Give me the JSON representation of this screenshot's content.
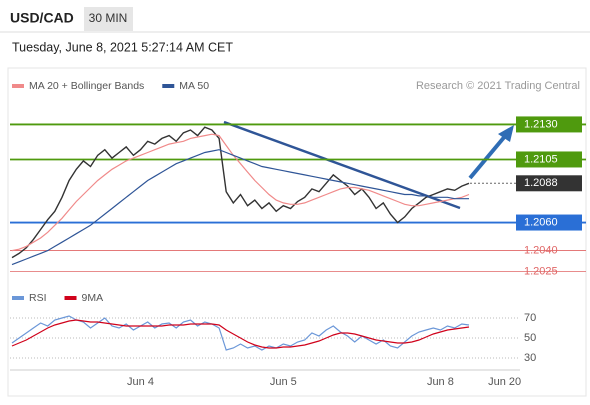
{
  "header": {
    "symbol": "USD/CAD",
    "timeframe": "30 MIN",
    "datetime": "Tuesday, June 8, 2021 5:27:14 AM CET",
    "source": "Research © 2021 Trading Central"
  },
  "chart_data": [
    {
      "type": "line",
      "ylim": [
        1.2019,
        1.2151
      ],
      "series": [
        {
          "color": "#333333",
          "values": [
            1.2035,
            1.2038,
            1.2042,
            1.2048,
            1.2055,
            1.2062,
            1.2068,
            1.2078,
            1.209,
            1.2098,
            1.2104,
            1.21,
            1.2108,
            1.2112,
            1.2106,
            1.211,
            1.2114,
            1.2108,
            1.2112,
            1.2118,
            1.2116,
            1.212,
            1.2122,
            1.2118,
            1.2124,
            1.2126,
            1.2122,
            1.2128,
            1.2126,
            1.212,
            1.2082,
            1.2074,
            1.208,
            1.2072,
            1.2076,
            1.207,
            1.2074,
            1.2068,
            1.2072,
            1.207,
            1.2075,
            1.2078,
            1.2084,
            1.2082,
            1.2088,
            1.2094,
            1.209,
            1.2086,
            1.208,
            1.2084,
            1.2078,
            1.207,
            1.2074,
            1.2066,
            1.206,
            1.2064,
            1.207,
            1.2074,
            1.2078,
            1.208,
            1.2082,
            1.2084,
            1.2083,
            1.2086,
            1.2088,
            null,
            null,
            null,
            null,
            null
          ]
        },
        {
          "name": "MA 20 + Bollinger Bands",
          "color": "#f08a8a",
          "values": [
            1.204,
            1.2041,
            1.2043,
            1.2046,
            1.2049,
            1.2053,
            1.2058,
            1.2063,
            1.2069,
            1.2075,
            1.208,
            1.2085,
            1.209,
            1.2094,
            1.2098,
            1.2101,
            1.2104,
            1.2106,
            1.2108,
            1.211,
            1.2112,
            1.2114,
            1.2116,
            1.2117,
            1.2118,
            1.212,
            1.2121,
            1.2122,
            1.2123,
            1.2122,
            1.2115,
            1.2108,
            1.2102,
            1.2096,
            1.209,
            1.2085,
            1.208,
            1.2076,
            1.2074,
            1.2073,
            1.2073,
            1.2074,
            1.2076,
            1.2078,
            1.208,
            1.2082,
            1.2084,
            1.2085,
            1.2085,
            1.2084,
            1.2083,
            1.2081,
            1.2079,
            1.2077,
            1.2075,
            1.2073,
            1.2072,
            1.2072,
            1.2073,
            1.2074,
            1.2075,
            1.2076,
            1.2077,
            1.2078,
            1.208,
            null,
            null,
            null,
            null,
            null
          ]
        },
        {
          "name": "MA 50",
          "color": "#2f5597",
          "values": [
            1.203,
            1.2032,
            1.2034,
            1.2036,
            1.2038,
            1.204,
            1.2043,
            1.2046,
            1.2049,
            1.2052,
            1.2055,
            1.2058,
            1.2062,
            1.2066,
            1.207,
            1.2074,
            1.2078,
            1.2082,
            1.2086,
            1.209,
            1.2093,
            1.2096,
            1.2099,
            1.2102,
            1.2104,
            1.2106,
            1.2108,
            1.211,
            1.2111,
            1.2112,
            1.211,
            1.2108,
            1.2106,
            1.2104,
            1.2102,
            1.21,
            1.2099,
            1.2098,
            1.2097,
            1.2096,
            1.2095,
            1.2094,
            1.2093,
            1.2092,
            1.2091,
            1.209,
            1.2089,
            1.2088,
            1.2087,
            1.2086,
            1.2085,
            1.2084,
            1.2083,
            1.2082,
            1.2081,
            1.208,
            1.208,
            1.2079,
            1.2079,
            1.2078,
            1.2078,
            1.2078,
            1.2077,
            1.2077,
            1.2077,
            null,
            null,
            null,
            null,
            null
          ]
        }
      ],
      "levels": [
        {
          "value": 1.213,
          "label": "1.2130",
          "color": "#4f9a0e"
        },
        {
          "value": 1.2105,
          "label": "1.2105",
          "color": "#4f9a0e"
        },
        {
          "value": 1.206,
          "label": "1.2060",
          "color": "#2a6fd6"
        },
        {
          "value": 1.204,
          "label": "1.2040",
          "color": "#e06666"
        },
        {
          "value": 1.2025,
          "label": "1.2025",
          "color": "#e06666"
        }
      ],
      "last": {
        "value": 1.2088,
        "label": "1.2088",
        "color": "#333333"
      }
    },
    {
      "type": "line",
      "ylim": [
        16,
        82
      ],
      "yticks": [
        30,
        50,
        70
      ],
      "categories": [
        null,
        null,
        null,
        null,
        null,
        null,
        null,
        null,
        null,
        null,
        null,
        null,
        null,
        null,
        null,
        null,
        null,
        null,
        "Jun 4",
        null,
        null,
        null,
        null,
        null,
        null,
        null,
        null,
        null,
        null,
        null,
        null,
        null,
        null,
        null,
        null,
        null,
        null,
        null,
        "Jun 5",
        null,
        null,
        null,
        null,
        null,
        null,
        null,
        null,
        null,
        null,
        null,
        null,
        null,
        null,
        null,
        null,
        null,
        null,
        null,
        null,
        null,
        "Jun 8",
        null,
        null,
        null,
        null,
        null,
        null,
        null,
        null,
        "Jun 20"
      ],
      "series": [
        {
          "name": "RSI",
          "color": "#6b97d8",
          "values": [
            45,
            50,
            55,
            60,
            65,
            62,
            68,
            70,
            72,
            68,
            66,
            60,
            65,
            70,
            62,
            60,
            64,
            58,
            62,
            66,
            60,
            64,
            65,
            60,
            66,
            68,
            62,
            66,
            64,
            60,
            38,
            40,
            44,
            40,
            42,
            38,
            42,
            40,
            44,
            42,
            46,
            48,
            55,
            52,
            58,
            62,
            56,
            52,
            46,
            52,
            48,
            44,
            48,
            42,
            40,
            46,
            52,
            56,
            58,
            60,
            58,
            62,
            60,
            64,
            63,
            null,
            null,
            null,
            null,
            null
          ]
        },
        {
          "name": "9MA",
          "color": "#d0021b",
          "values": [
            42,
            45,
            48,
            52,
            56,
            60,
            63,
            65,
            67,
            68,
            67,
            66,
            66,
            65,
            64,
            63,
            62,
            62,
            62,
            62,
            62,
            62,
            63,
            63,
            63,
            64,
            64,
            64,
            64,
            63,
            58,
            54,
            50,
            46,
            43,
            41,
            40,
            40,
            41,
            41,
            42,
            43,
            45,
            47,
            50,
            53,
            55,
            55,
            54,
            52,
            50,
            48,
            47,
            46,
            45,
            45,
            46,
            48,
            51,
            54,
            56,
            58,
            59,
            60,
            61,
            null,
            null,
            null,
            null,
            null
          ]
        }
      ]
    }
  ]
}
